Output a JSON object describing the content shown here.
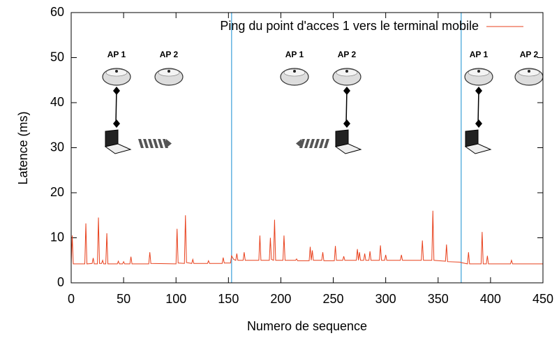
{
  "chart_data": {
    "type": "line",
    "legend": "top-right",
    "xlabel": "Numero de sequence",
    "ylabel": "Latence (ms)",
    "xlim": [
      0,
      450
    ],
    "ylim": [
      0,
      60
    ],
    "xticks": [
      0,
      50,
      100,
      150,
      200,
      250,
      300,
      350,
      400,
      450
    ],
    "yticks": [
      0,
      10,
      20,
      30,
      40,
      50,
      60
    ],
    "vertical_lines": [
      153,
      372
    ],
    "vertical_line_color": "#3aa0d8",
    "ap_labels": [
      "AP 1",
      "AP 2",
      "AP 1",
      "AP 2",
      "AP 1",
      "AP 2"
    ],
    "x": [
      0,
      1,
      2,
      13,
      14,
      15,
      20,
      21,
      22,
      25,
      26,
      27,
      29,
      30,
      31,
      33,
      34,
      35,
      44,
      45,
      46,
      49,
      50,
      51,
      56,
      57,
      58,
      74,
      75,
      76,
      100,
      101,
      102,
      108,
      109,
      110,
      115,
      116,
      117,
      130,
      131,
      132,
      144,
      145,
      146,
      152,
      153,
      155,
      157,
      158,
      159,
      164,
      165,
      166,
      179,
      180,
      181,
      189,
      190,
      191,
      193,
      194,
      195,
      202,
      203,
      204,
      214,
      215,
      216,
      227,
      228,
      229,
      230,
      231,
      239,
      240,
      241,
      251,
      252,
      253,
      259,
      260,
      261,
      272,
      273,
      274,
      275,
      276,
      279,
      280,
      281,
      284,
      285,
      286,
      294,
      295,
      296,
      299,
      300,
      301,
      314,
      315,
      316,
      334,
      335,
      336,
      344,
      345,
      346,
      357,
      358,
      359,
      371,
      372,
      378,
      379,
      380,
      391,
      392,
      393,
      396,
      397,
      398,
      419,
      420,
      421,
      450
    ],
    "series": [
      {
        "name": "Ping du point d'acces 1 vers le terminal mobile",
        "color": "#e8401c",
        "values": [
          4.2,
          10.5,
          4.2,
          4.2,
          13.2,
          4.2,
          4.3,
          5.5,
          4.2,
          4.2,
          14.5,
          4.3,
          4.3,
          5,
          4.2,
          4.2,
          11,
          4.2,
          4.2,
          4.8,
          4.2,
          4.2,
          4.7,
          4.2,
          4.2,
          5.8,
          4.2,
          4.2,
          6.8,
          4.3,
          4.2,
          12,
          4.4,
          4.3,
          15,
          4.5,
          4.3,
          5.2,
          4.3,
          4.3,
          4.9,
          4.3,
          4.3,
          5.6,
          4.4,
          4.4,
          6,
          5.2,
          5,
          6.5,
          5,
          5,
          6.8,
          5,
          5,
          10.5,
          5,
          5,
          10,
          5.2,
          5,
          14,
          5,
          5,
          10.5,
          5,
          5,
          5.3,
          4.9,
          4.9,
          8,
          5,
          7.2,
          5,
          5,
          6.8,
          4.9,
          4.9,
          8.2,
          5,
          5,
          5.9,
          5,
          5,
          7.5,
          5,
          6.8,
          5,
          5,
          6.5,
          5,
          5,
          7,
          5,
          5,
          8.3,
          5,
          5,
          6.2,
          5,
          5,
          6.2,
          5,
          5,
          9.4,
          5,
          5,
          16,
          5,
          4.8,
          8.5,
          4.7,
          4.6,
          4.5,
          4.2,
          6.8,
          4.2,
          4.2,
          11.3,
          4.2,
          4.2,
          6,
          4.2,
          4.2,
          5,
          4.2,
          4.2
        ]
      }
    ]
  }
}
